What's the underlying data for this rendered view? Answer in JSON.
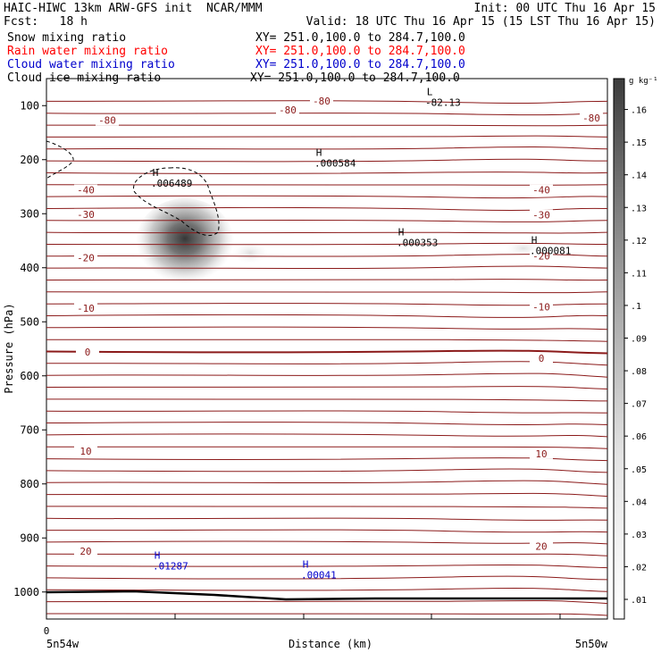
{
  "header": {
    "model_title": "HAIC-HIWC 13km ARW-GFS init  NCAR/MMM",
    "init": "Init: 00 UTC Thu 16 Apr 15",
    "fcst": "Fcst:   18 h",
    "valid": "Valid: 18 UTC Thu 16 Apr 15 (15 LST Thu 16 Apr 15)"
  },
  "fields": [
    {
      "name": "Snow mixing ratio",
      "xy": "XY= 251.0,100.0 to 284.7,100.0",
      "color": "#000000"
    },
    {
      "name": "Rain water mixing ratio",
      "xy": "XY= 251.0,100.0 to 284.7,100.0",
      "color": "#ff0000"
    },
    {
      "name": "Cloud water mixing ratio",
      "xy": "XY= 251.0,100.0 to 284.7,100.0",
      "color": "#0000cc"
    },
    {
      "name": "Cloud ice mixing ratio",
      "xy": "XY= 251.0,100.0 to 284.7,100.0",
      "color": "#000000"
    }
  ],
  "colors": {
    "isotherm": "#8b1a1a",
    "cloud_water": "#0000cc",
    "ground": "#000000",
    "shading": "#3a3a3a"
  },
  "chart_data": {
    "type": "cross-section",
    "ylabel": "Pressure (hPa)",
    "xlabel": "Distance (km)",
    "ylim": [
      1050,
      50
    ],
    "y_ticks": [
      "100",
      "200",
      "300",
      "400",
      "500",
      "600",
      "700",
      "800",
      "900",
      "1000"
    ],
    "x_tick_label": "0",
    "x_left_label": "5n54w",
    "x_right_label": "5n50w",
    "colorbar": {
      "unit_label": "g kg⁻¹",
      "ticks": [
        ".01",
        ".02",
        ".03",
        ".04",
        ".05",
        ".06",
        ".07",
        ".08",
        ".09",
        ".1",
        ".11",
        ".12",
        ".13",
        ".14",
        ".15",
        ".16"
      ]
    },
    "isotherm_labels": [
      {
        "text": "-80",
        "p": 127,
        "pos": "left"
      },
      {
        "text": "-80",
        "p": 108,
        "pos": "center-left"
      },
      {
        "text": "-80",
        "p": 91,
        "pos": "center"
      },
      {
        "text": "-80",
        "p": 123,
        "pos": "right"
      },
      {
        "text": "-40",
        "p": 256,
        "pos": "left"
      },
      {
        "text": "-40",
        "p": 256,
        "pos": "right"
      },
      {
        "text": "-30",
        "p": 301,
        "pos": "left"
      },
      {
        "text": "-30",
        "p": 302,
        "pos": "right"
      },
      {
        "text": "-20",
        "p": 381,
        "pos": "left"
      },
      {
        "text": "-20",
        "p": 378,
        "pos": "right"
      },
      {
        "text": "-10",
        "p": 475,
        "pos": "left"
      },
      {
        "text": "-10",
        "p": 472,
        "pos": "right"
      },
      {
        "text": "0",
        "p": 556,
        "pos": "left"
      },
      {
        "text": "0",
        "p": 567,
        "pos": "right"
      },
      {
        "text": "10",
        "p": 739,
        "pos": "left"
      },
      {
        "text": "10",
        "p": 744,
        "pos": "right"
      },
      {
        "text": "20",
        "p": 924,
        "pos": "left"
      },
      {
        "text": "20",
        "p": 915,
        "pos": "right"
      }
    ],
    "extrema": [
      {
        "kind": "L",
        "value": "-82.13",
        "p": 100,
        "color": "black"
      },
      {
        "kind": "H",
        "value": ".006489",
        "p": 250,
        "color": "black"
      },
      {
        "kind": "H",
        "value": ".000584",
        "p": 213,
        "color": "black"
      },
      {
        "kind": "H",
        "value": ".000353",
        "p": 360,
        "color": "black"
      },
      {
        "kind": "H",
        "value": ".000081",
        "p": 375,
        "color": "black"
      },
      {
        "kind": "H",
        "value": ".01287",
        "p": 958,
        "color": "blue"
      },
      {
        "kind": "H",
        "value": ".00041",
        "p": 975,
        "color": "blue"
      }
    ],
    "shaded_maximum": {
      "field": "Cloud ice mixing ratio",
      "value": 0.15,
      "p_center": 350
    }
  }
}
